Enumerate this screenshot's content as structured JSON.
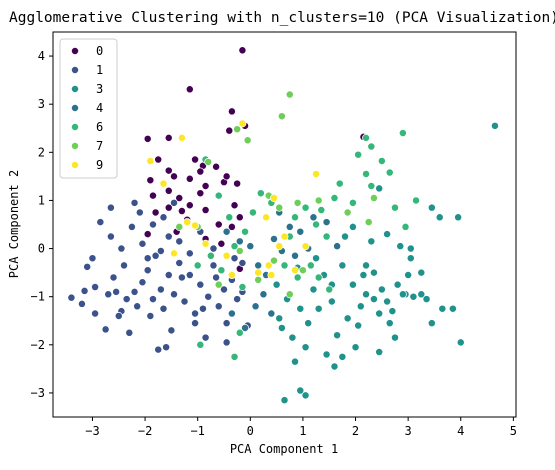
{
  "chart_data": {
    "type": "scatter",
    "title": "Agglomerative Clustering with n_clusters=10 (PCA Visualization)",
    "xlabel": "PCA Component 1",
    "ylabel": "PCA Component 2",
    "xlim": [
      -3.75,
      5.05
    ],
    "ylim": [
      -3.5,
      4.5
    ],
    "xticks": [
      "−3",
      "−2",
      "−1",
      "0",
      "1",
      "2",
      "3",
      "4",
      "5"
    ],
    "yticks": [
      "−3",
      "−2",
      "−1",
      "0",
      "1",
      "2",
      "3",
      "4"
    ],
    "grid": false,
    "legend_position": "top-left",
    "series": [
      {
        "name": "0",
        "color": "#440154",
        "points": [
          [
            -0.15,
            4.12
          ],
          [
            -1.15,
            3.31
          ],
          [
            -0.35,
            2.85
          ],
          [
            -0.4,
            2.45
          ],
          [
            -0.1,
            2.55
          ],
          [
            -1.95,
            2.28
          ],
          [
            -1.55,
            2.3
          ],
          [
            -1.75,
            1.85
          ],
          [
            -1.05,
            1.85
          ],
          [
            -0.9,
            1.72
          ],
          [
            -0.65,
            1.7
          ],
          [
            -0.95,
            1.6
          ],
          [
            -1.55,
            1.62
          ],
          [
            -1.45,
            1.5
          ],
          [
            -1.9,
            1.42
          ],
          [
            -1.15,
            1.45
          ],
          [
            -0.85,
            1.3
          ],
          [
            -0.5,
            1.38
          ],
          [
            -0.25,
            1.35
          ],
          [
            -0.95,
            1.15
          ],
          [
            -1.55,
            1.2
          ],
          [
            -1.85,
            1.1
          ],
          [
            -1.35,
            1.05
          ],
          [
            -1.55,
            0.85
          ],
          [
            -1.8,
            0.75
          ],
          [
            -1.3,
            0.78
          ],
          [
            -0.85,
            0.8
          ],
          [
            -0.3,
            0.9
          ],
          [
            -0.2,
            0.65
          ],
          [
            -0.6,
            0.5
          ],
          [
            -0.85,
            0.2
          ],
          [
            -0.55,
            0.1
          ],
          [
            -0.35,
            0.45
          ],
          [
            -1.2,
            0.6
          ],
          [
            -1.95,
            0.3
          ],
          [
            -1.4,
            0.35
          ],
          [
            2.15,
            2.32
          ],
          [
            -0.2,
            -0.42
          ],
          [
            -0.45,
            1.5
          ],
          [
            -1.15,
            0.9
          ]
        ]
      },
      {
        "name": "1",
        "color": "#3b528b",
        "points": [
          [
            -3.4,
            -1.02
          ],
          [
            -3.15,
            -0.88
          ],
          [
            -3.1,
            -0.38
          ],
          [
            -3.2,
            -1.15
          ],
          [
            -2.95,
            -0.8
          ],
          [
            -2.75,
            -1.68
          ],
          [
            -2.55,
            -0.9
          ],
          [
            -2.45,
            -1.3
          ],
          [
            -2.6,
            -0.6
          ],
          [
            -2.4,
            -0.35
          ],
          [
            -2.35,
            -1.05
          ],
          [
            -2.2,
            -0.9
          ],
          [
            -2.15,
            -1.2
          ],
          [
            -2.05,
            -0.7
          ],
          [
            -1.95,
            -0.45
          ],
          [
            -1.9,
            -1.4
          ],
          [
            -1.8,
            -0.15
          ],
          [
            -1.7,
            -0.85
          ],
          [
            -1.65,
            -1.25
          ],
          [
            -1.55,
            -0.55
          ],
          [
            -1.45,
            -0.95
          ],
          [
            -1.35,
            -0.3
          ],
          [
            -1.25,
            -1.1
          ],
          [
            -1.15,
            -0.55
          ],
          [
            -1.05,
            -1.35
          ],
          [
            -0.95,
            -0.75
          ],
          [
            -0.8,
            -1.0
          ],
          [
            -0.7,
            -0.35
          ],
          [
            -0.6,
            -1.2
          ],
          [
            -0.5,
            -0.85
          ],
          [
            -0.45,
            -1.55
          ],
          [
            -0.35,
            -0.65
          ],
          [
            -0.25,
            -1.05
          ],
          [
            -0.15,
            -0.3
          ],
          [
            -2.85,
            0.55
          ],
          [
            -2.65,
            0.25
          ],
          [
            -2.45,
            0.0
          ],
          [
            -2.25,
            0.45
          ],
          [
            -2.05,
            0.1
          ],
          [
            -1.85,
            0.5
          ],
          [
            -1.7,
            -0.05
          ],
          [
            -1.55,
            0.25
          ],
          [
            -1.35,
            0.15
          ],
          [
            -1.15,
            -0.1
          ],
          [
            -0.95,
            0.35
          ],
          [
            -1.75,
            -2.1
          ],
          [
            -1.6,
            -2.05
          ],
          [
            -0.85,
            -1.85
          ],
          [
            -0.45,
            -1.95
          ],
          [
            -0.05,
            -1.6
          ],
          [
            -3.0,
            -0.2
          ],
          [
            -2.7,
            -0.95
          ],
          [
            -2.3,
            -1.75
          ],
          [
            -1.95,
            -0.2
          ],
          [
            -1.5,
            -1.7
          ],
          [
            -1.05,
            -1.55
          ],
          [
            -2.1,
            0.75
          ],
          [
            -1.65,
            0.65
          ],
          [
            -2.5,
            -1.4
          ],
          [
            -1.3,
            -0.6
          ],
          [
            -0.7,
            0.0
          ],
          [
            -0.3,
            -0.2
          ],
          [
            -1.45,
            0.95
          ],
          [
            -2.2,
            0.95
          ],
          [
            -2.65,
            0.85
          ],
          [
            -2.95,
            -1.35
          ],
          [
            -1.85,
            -1.05
          ],
          [
            -0.9,
            -1.25
          ],
          [
            -0.65,
            -0.6
          ],
          [
            -0.15,
            -0.9
          ]
        ]
      },
      {
        "name": "3",
        "color": "#21918c",
        "points": [
          [
            4.65,
            2.55
          ],
          [
            3.95,
            0.65
          ],
          [
            4.0,
            -1.95
          ],
          [
            3.6,
            0.65
          ],
          [
            3.45,
            0.85
          ],
          [
            3.25,
            -0.95
          ],
          [
            3.1,
            -1.0
          ],
          [
            3.0,
            -0.55
          ],
          [
            2.95,
            -0.95
          ],
          [
            2.8,
            -0.75
          ],
          [
            2.7,
            -1.3
          ],
          [
            2.6,
            -1.1
          ],
          [
            2.5,
            -0.85
          ],
          [
            2.45,
            -1.35
          ],
          [
            2.35,
            -0.5
          ],
          [
            2.2,
            -0.95
          ],
          [
            2.1,
            -1.2
          ],
          [
            2.05,
            -1.6
          ],
          [
            1.95,
            -0.75
          ],
          [
            1.85,
            -1.45
          ],
          [
            1.75,
            -0.35
          ],
          [
            1.65,
            -1.8
          ],
          [
            1.55,
            -1.1
          ],
          [
            1.45,
            -2.2
          ],
          [
            1.4,
            -0.55
          ],
          [
            1.3,
            -1.25
          ],
          [
            1.2,
            -0.85
          ],
          [
            1.1,
            -1.55
          ],
          [
            1.05,
            -2.05
          ],
          [
            0.95,
            -1.25
          ],
          [
            0.9,
            -0.4
          ],
          [
            0.85,
            -2.35
          ],
          [
            0.8,
            -1.85
          ],
          [
            0.7,
            -1.05
          ],
          [
            0.65,
            -3.15
          ],
          [
            0.55,
            -1.45
          ],
          [
            0.5,
            -0.75
          ],
          [
            1.05,
            -3.05
          ],
          [
            1.6,
            -2.45
          ],
          [
            1.75,
            -2.25
          ],
          [
            2.0,
            -2.05
          ],
          [
            2.15,
            -0.55
          ],
          [
            2.45,
            -2.15
          ],
          [
            2.65,
            -1.55
          ],
          [
            2.9,
            -0.95
          ],
          [
            3.35,
            -1.05
          ],
          [
            3.65,
            -1.25
          ],
          [
            3.85,
            -1.25
          ],
          [
            1.8,
            0.25
          ],
          [
            1.95,
            0.45
          ],
          [
            2.3,
            0.15
          ],
          [
            2.6,
            0.3
          ],
          [
            2.85,
            0.05
          ],
          [
            3.05,
            0.0
          ],
          [
            3.25,
            -0.5
          ],
          [
            2.45,
            1.25
          ],
          [
            2.2,
            -0.35
          ],
          [
            2.75,
            -1.85
          ],
          [
            0.6,
            -1.65
          ],
          [
            1.25,
            -0.2
          ],
          [
            0.95,
            -2.95
          ],
          [
            3.45,
            -1.55
          ],
          [
            2.35,
            -1.05
          ],
          [
            1.55,
            -0.75
          ],
          [
            3.05,
            -0.2
          ]
        ]
      },
      {
        "name": "4",
        "color": "#2c728e",
        "points": [
          [
            -0.45,
            0.35
          ],
          [
            -0.2,
            0.15
          ],
          [
            0.0,
            0.05
          ],
          [
            0.15,
            -0.35
          ],
          [
            0.3,
            -0.55
          ],
          [
            0.45,
            0.2
          ],
          [
            0.6,
            -0.05
          ],
          [
            0.75,
            0.45
          ],
          [
            0.85,
            -0.15
          ],
          [
            0.95,
            0.35
          ],
          [
            1.1,
            0.0
          ],
          [
            -0.35,
            -1.35
          ],
          [
            -0.1,
            -1.65
          ],
          [
            0.1,
            -1.2
          ],
          [
            0.25,
            -0.95
          ],
          [
            0.4,
            -1.35
          ],
          [
            1.45,
            0.55
          ],
          [
            1.2,
            0.65
          ],
          [
            1.65,
            0.05
          ],
          [
            0.55,
            0.75
          ]
        ]
      },
      {
        "name": "6",
        "color": "#35b779",
        "points": [
          [
            2.2,
            2.3
          ],
          [
            2.9,
            2.4
          ],
          [
            2.3,
            2.12
          ],
          [
            2.05,
            1.95
          ],
          [
            2.5,
            1.82
          ],
          [
            2.65,
            1.58
          ],
          [
            2.2,
            1.55
          ],
          [
            2.3,
            1.3
          ],
          [
            1.95,
            0.95
          ],
          [
            1.6,
            1.05
          ],
          [
            1.35,
            0.8
          ],
          [
            1.25,
            0.5
          ],
          [
            1.05,
            0.85
          ],
          [
            0.85,
            0.65
          ],
          [
            0.75,
            0.25
          ],
          [
            1.15,
            -0.35
          ],
          [
            1.3,
            -0.6
          ],
          [
            1.5,
            -0.85
          ],
          [
            0.9,
            -0.6
          ],
          [
            0.65,
            -0.35
          ],
          [
            0.4,
            0.95
          ],
          [
            0.2,
            1.15
          ],
          [
            0.05,
            0.75
          ],
          [
            -0.1,
            0.35
          ],
          [
            -0.3,
            0.05
          ],
          [
            -0.55,
            -0.45
          ],
          [
            -0.75,
            -0.15
          ],
          [
            -1.0,
            -0.35
          ],
          [
            -0.85,
            1.85
          ],
          [
            -0.95,
            -2.0
          ],
          [
            -0.3,
            -2.25
          ],
          [
            -0.2,
            -1.75
          ],
          [
            -0.6,
            1.1
          ],
          [
            -0.4,
            0.65
          ],
          [
            -0.15,
            -0.8
          ],
          [
            2.75,
            0.85
          ],
          [
            2.95,
            0.45
          ],
          [
            3.15,
            1.0
          ],
          [
            1.7,
            1.35
          ],
          [
            1.45,
            0.25
          ]
        ]
      },
      {
        "name": "7",
        "color": "#6ece58",
        "points": [
          [
            0.75,
            3.2
          ],
          [
            0.6,
            2.75
          ],
          [
            -0.25,
            2.48
          ],
          [
            -0.05,
            2.25
          ],
          [
            -0.8,
            1.8
          ],
          [
            0.35,
            1.1
          ],
          [
            0.55,
            0.85
          ],
          [
            0.9,
            0.95
          ],
          [
            1.3,
            1.0
          ],
          [
            2.35,
            1.05
          ],
          [
            2.25,
            0.55
          ],
          [
            1.85,
            0.75
          ],
          [
            1.0,
            -0.45
          ],
          [
            0.75,
            -0.95
          ],
          [
            0.45,
            -0.25
          ],
          [
            -0.2,
            -0.05
          ],
          [
            -0.6,
            -0.75
          ],
          [
            -1.0,
            0.45
          ],
          [
            -1.35,
            0.45
          ],
          [
            0.15,
            -0.65
          ]
        ]
      },
      {
        "name": "9",
        "color": "#fde725",
        "points": [
          [
            -1.3,
            2.3
          ],
          [
            -0.15,
            2.6
          ],
          [
            -1.9,
            1.82
          ],
          [
            -1.65,
            1.35
          ],
          [
            -1.05,
            0.48
          ],
          [
            -1.2,
            0.55
          ],
          [
            -0.85,
            0.1
          ],
          [
            -0.45,
            -0.15
          ],
          [
            -0.35,
            -0.55
          ],
          [
            0.15,
            -0.5
          ],
          [
            0.35,
            -0.35
          ],
          [
            0.4,
            -0.55
          ],
          [
            0.55,
            0.05
          ],
          [
            0.65,
            0.25
          ],
          [
            0.85,
            -0.45
          ],
          [
            1.05,
            0.05
          ],
          [
            1.25,
            1.55
          ],
          [
            0.45,
            1.05
          ],
          [
            0.3,
            0.65
          ],
          [
            -1.45,
            -0.1
          ]
        ]
      }
    ]
  }
}
